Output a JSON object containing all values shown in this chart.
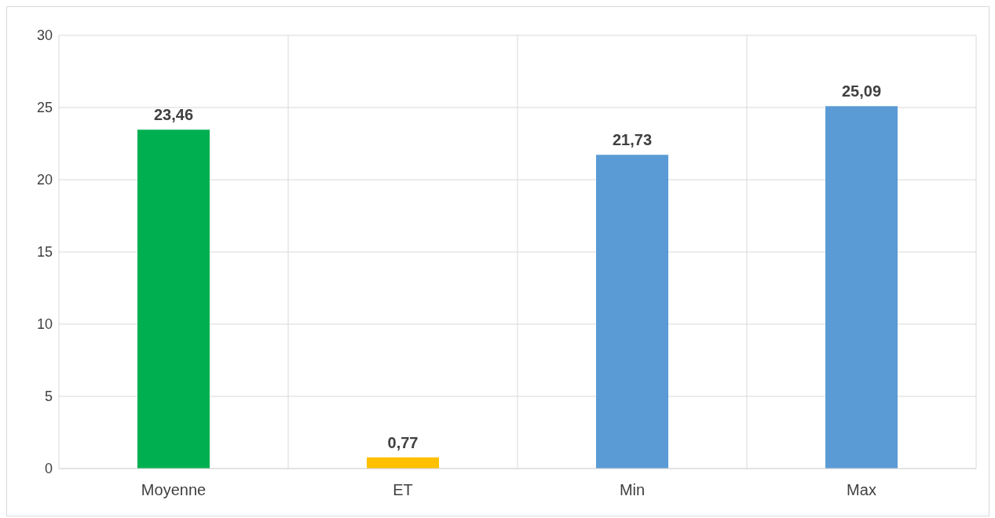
{
  "chart_data": {
    "type": "bar",
    "categories": [
      "Moyenne",
      "ET",
      "Min",
      "Max"
    ],
    "values": [
      23.46,
      0.77,
      21.73,
      25.09
    ],
    "colors": [
      "#00b050",
      "#ffc000",
      "#5b9bd5",
      "#5b9bd5"
    ],
    "value_labels": [
      "23,46",
      "0,77",
      "21,73",
      "25,09"
    ],
    "ylim": [
      0,
      30
    ],
    "yticks": [
      0,
      5,
      10,
      15,
      20,
      25,
      30
    ],
    "grid": true
  }
}
